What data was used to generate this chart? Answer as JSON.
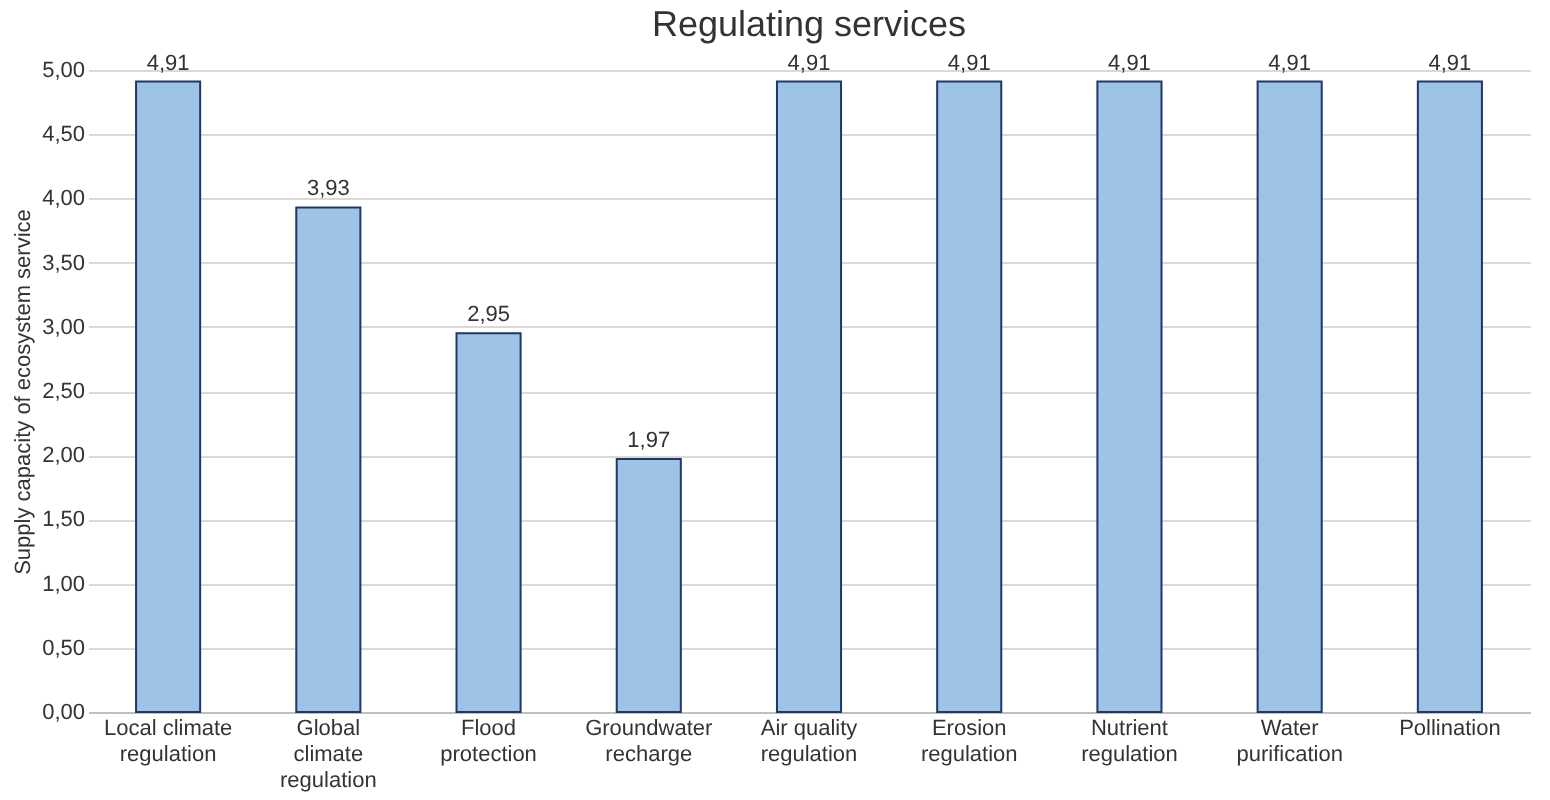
{
  "chart_data": {
    "type": "bar",
    "title": "Regulating services",
    "ylabel": "Supply capacity of ecosystem service",
    "categories": [
      "Local climate regulation",
      "Global climate regulation",
      "Flood protection",
      "Groundwater recharge",
      "Air quality regulation",
      "Erosion regulation",
      "Nutrient regulation",
      "Water purification",
      "Pollination"
    ],
    "values": [
      4.91,
      3.93,
      2.95,
      1.97,
      4.91,
      4.91,
      4.91,
      4.91,
      4.91
    ],
    "value_labels": [
      "4,91",
      "3,93",
      "2,95",
      "1,97",
      "4,91",
      "4,91",
      "4,91",
      "4,91",
      "4,91"
    ],
    "color": "#9dc3e6",
    "ylim": [
      0,
      5
    ],
    "yticks": [
      {
        "value": 0,
        "label": "0,00"
      },
      {
        "value": 0.5,
        "label": "0,50"
      },
      {
        "value": 1,
        "label": "1,00"
      },
      {
        "value": 1.5,
        "label": "1,50"
      },
      {
        "value": 2,
        "label": "2,00"
      },
      {
        "value": 2.5,
        "label": "2,50"
      },
      {
        "value": 3,
        "label": "3,00"
      },
      {
        "value": 3.5,
        "label": "3,50"
      },
      {
        "value": 4,
        "label": "4,00"
      },
      {
        "value": 4.5,
        "label": "4,50"
      },
      {
        "value": 5,
        "label": "5,00"
      }
    ],
    "grid": "y"
  }
}
